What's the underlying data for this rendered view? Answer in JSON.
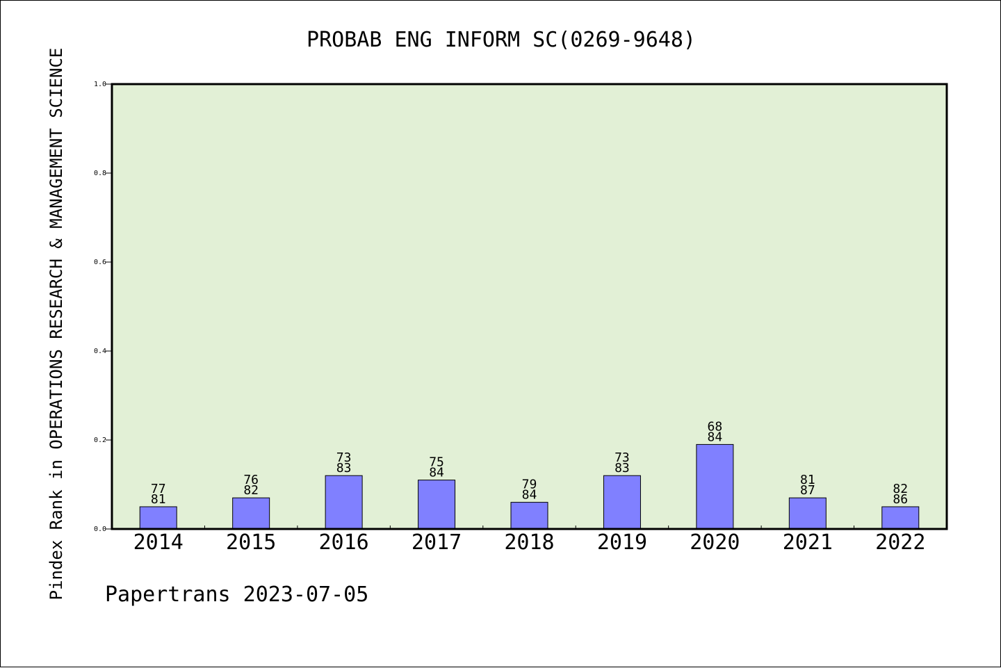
{
  "chart_data": {
    "type": "bar",
    "title": "PROBAB ENG INFORM SC(0269-9648)",
    "ylabel": "Pindex Rank in OPERATIONS RESEARCH & MANAGEMENT SCIENCE",
    "xlabel": "",
    "ylim": [
      0,
      1.0
    ],
    "yticks": [
      "0.0",
      "0.2",
      "0.4",
      "0.6",
      "0.8",
      "1.0"
    ],
    "categories": [
      "2014",
      "2015",
      "2016",
      "2017",
      "2018",
      "2019",
      "2020",
      "2021",
      "2022"
    ],
    "values": [
      0.05,
      0.07,
      0.12,
      0.11,
      0.06,
      0.12,
      0.19,
      0.07,
      0.05
    ],
    "rank": [
      "77",
      "76",
      "73",
      "75",
      "79",
      "73",
      "68",
      "81",
      "82"
    ],
    "total": [
      "81",
      "82",
      "83",
      "84",
      "84",
      "83",
      "84",
      "87",
      "86"
    ],
    "grid": false,
    "colors": {
      "plot_background": "#e2f0d6",
      "bar_fill": "#8080ff",
      "bar_stroke": "#000000"
    }
  },
  "footer": {
    "text": "Papertrans 2023-07-05"
  }
}
